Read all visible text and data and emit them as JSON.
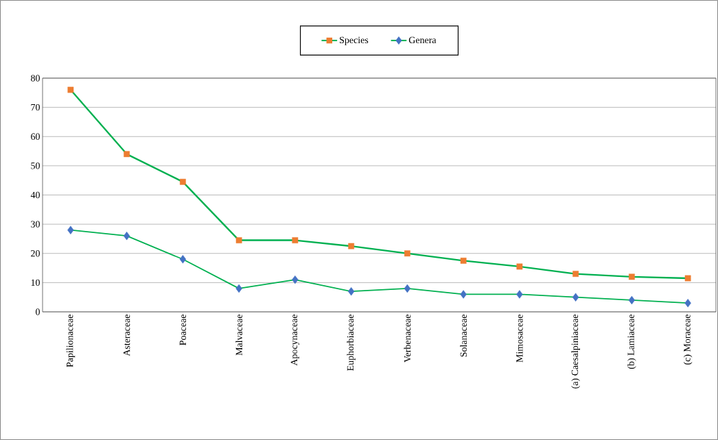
{
  "chart_data": {
    "type": "line",
    "categories": [
      "Papilionaceae",
      "Asteraceae",
      "Poaceae",
      "Malvaceae",
      "Apocynaceae",
      "Euphorbiaceae",
      "Verbenaceae",
      "Solanaceae",
      "Mimosaceae",
      "(a) Caesalpiniaceae",
      "(b) Lamiaceae",
      "(c) Moraceae"
    ],
    "series": [
      {
        "name": "Species",
        "color": "#00b050",
        "marker": "square",
        "values": [
          76,
          54,
          44.5,
          24.5,
          24.5,
          22.5,
          20,
          17.5,
          15.5,
          13,
          12,
          11.5
        ],
        "colors": [
          "#ed7d31",
          "#ed7d31",
          "#ed7d31",
          "#ed7d31",
          "#ed7d31",
          "#ed7d31",
          "#ed7d31",
          "#ed7d31",
          "#ed7d31",
          "#ed7d31",
          "#ed7d31",
          "#ed7d31"
        ]
      },
      {
        "name": "Genera",
        "color": "#00b050",
        "marker": "diamond",
        "values": [
          28,
          26,
          18,
          8,
          11,
          7,
          8,
          6,
          6,
          5,
          4,
          3
        ],
        "colors": [
          "#4472c4",
          "#4472c4",
          "#4472c4",
          "#4472c4",
          "#4472c4",
          "#4472c4",
          "#4472c4",
          "#4472c4",
          "#4472c4",
          "#4472c4",
          "#4472c4",
          "#4472c4"
        ]
      }
    ],
    "ylim": [
      0,
      80
    ],
    "yticks": [
      0,
      10,
      20,
      30,
      40,
      50,
      60,
      70,
      80
    ],
    "grid": "y",
    "legend": "top"
  }
}
